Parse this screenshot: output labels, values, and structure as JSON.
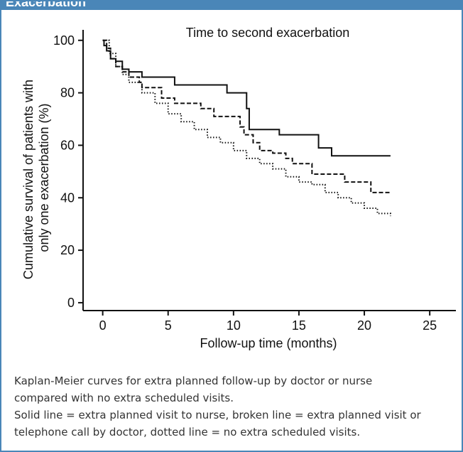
{
  "header": {
    "title": "Exacerbation"
  },
  "chart_data": {
    "type": "line",
    "step": true,
    "title": "Time to second exacerbation",
    "xlabel": "Follow-up time (months)",
    "ylabel": "Cumulative survival of patients with only one exacerbation (%)",
    "ylabel_lines": [
      "Cumulative survival of patients with",
      "only one exacerbation (%)"
    ],
    "xlim": [
      -1.5,
      27
    ],
    "ylim": [
      -3,
      104
    ],
    "xticks": [
      0,
      5,
      10,
      15,
      20,
      25
    ],
    "yticks": [
      0,
      20,
      40,
      60,
      80,
      100
    ],
    "grid": false,
    "series": [
      {
        "style": "solid",
        "x": [
          0,
          0.1,
          0.3,
          0.6,
          1.0,
          1.5,
          2.0,
          3.0,
          4.0,
          5.5,
          9.5,
          11.0,
          11.2,
          13.5,
          16.5,
          17.5,
          22.0
        ],
        "y": [
          100,
          98,
          96,
          93,
          92,
          89,
          88,
          86,
          86,
          83,
          80,
          74,
          66,
          64,
          59,
          56,
          56
        ]
      },
      {
        "style": "dashed",
        "x": [
          0,
          0.3,
          0.6,
          1.0,
          1.5,
          2.0,
          2.8,
          3.0,
          4.5,
          5.5,
          7.5,
          8.5,
          10.5,
          10.8,
          11.5,
          12.0,
          13.0,
          14.0,
          14.5,
          16.0,
          18.5,
          20.5,
          22.0
        ],
        "y": [
          100,
          97,
          93,
          90,
          88,
          86,
          84,
          82,
          78,
          76,
          74,
          71,
          67,
          64,
          61,
          58,
          57,
          55,
          53,
          49,
          46,
          42,
          42
        ]
      },
      {
        "style": "dotted",
        "x": [
          0,
          0.5,
          1.0,
          1.5,
          2.0,
          3.0,
          4.0,
          5.0,
          6.0,
          7.0,
          8.0,
          9.0,
          10.0,
          11.0,
          12.0,
          13.0,
          14.0,
          15.0,
          16.0,
          17.0,
          18.0,
          19.0,
          20.0,
          21.0,
          22.0
        ],
        "y": [
          100,
          95,
          90,
          87,
          84,
          80,
          76,
          72,
          69,
          66,
          63,
          61,
          58,
          55,
          53,
          51,
          48,
          46,
          45,
          42,
          40,
          38,
          36,
          34,
          33
        ]
      }
    ]
  },
  "caption": {
    "line1": "Kaplan-Meier curves for extra planned follow-up by doctor or nurse",
    "line2": "compared with no extra scheduled visits.",
    "line3": "Solid line = extra planned visit to nurse, broken line = extra planned visit or",
    "line4": "telephone call by doctor, dotted line = no extra scheduled visits."
  }
}
